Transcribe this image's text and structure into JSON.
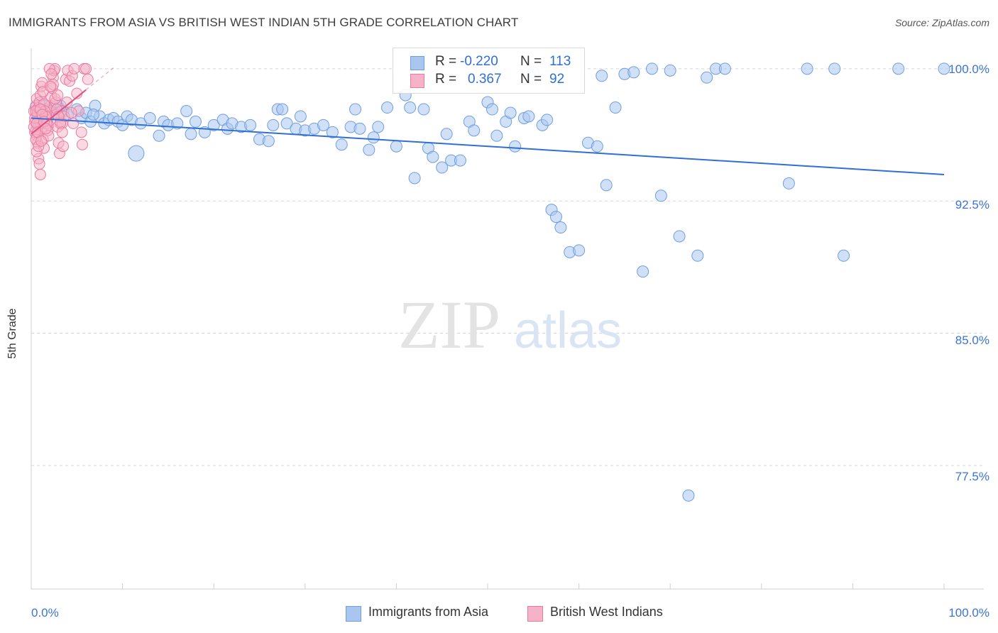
{
  "header": {
    "title": "IMMIGRANTS FROM ASIA VS BRITISH WEST INDIAN 5TH GRADE CORRELATION CHART",
    "source": "Source: ZipAtlas.com"
  },
  "watermark": {
    "zip": "ZIP",
    "atlas": "atlas"
  },
  "legend": {
    "series1": {
      "r_label": "R =",
      "r_value": "-0.220",
      "n_label": "N =",
      "n_value": "113"
    },
    "series2": {
      "r_label": "R =",
      "r_value": "0.367",
      "n_label": "N =",
      "n_value": "92"
    }
  },
  "colors": {
    "blue_fill": "#a9c6f0",
    "blue_stroke": "#6f9ee0",
    "blue_line": "#2f6fd6",
    "pink_fill": "#f6b3c8",
    "pink_stroke": "#ea7aa0",
    "pink_line": "#e0507e",
    "grid": "#d5d5d5",
    "tick_text": "#3b73d1"
  },
  "chart_data": {
    "type": "scatter",
    "title": "IMMIGRANTS FROM ASIA VS BRITISH WEST INDIAN 5TH GRADE CORRELATION CHART",
    "xlabel": "",
    "ylabel": "5th Grade",
    "xlim": [
      0,
      100
    ],
    "ylim": [
      70.5,
      101.0
    ],
    "x_tick_labels": [
      "0.0%",
      "100.0%"
    ],
    "y_ticks": [
      100.0,
      92.5,
      85.0,
      77.5
    ],
    "y_tick_labels": [
      "100.0%",
      "92.5%",
      "85.0%",
      "77.5%"
    ],
    "grid": true,
    "legend_position": "top-center",
    "series": [
      {
        "name": "Immigrants from Asia",
        "color": "#6f9ee0",
        "trend": {
          "x": [
            0,
            100
          ],
          "y": [
            97.2,
            94.0
          ]
        },
        "points": [
          [
            0.5,
            97.8
          ],
          [
            1,
            97.6
          ],
          [
            1.5,
            97.9
          ],
          [
            2,
            97.5
          ],
          [
            2.5,
            97.7
          ],
          [
            3,
            97.8
          ],
          [
            3.5,
            97.6
          ],
          [
            4,
            97.4
          ],
          [
            5,
            97.7
          ],
          [
            5.5,
            97.2
          ],
          [
            6,
            97.5
          ],
          [
            6.5,
            97.0
          ],
          [
            7,
            97.9
          ],
          [
            7.5,
            97.3
          ],
          [
            8,
            96.9
          ],
          [
            8.5,
            97.1
          ],
          [
            9,
            97.2
          ],
          [
            9.5,
            97.0
          ],
          [
            10,
            96.8
          ],
          [
            10.5,
            97.3
          ],
          [
            11,
            97.1
          ],
          [
            11.5,
            95.2
          ],
          [
            12,
            96.9
          ],
          [
            13,
            97.2
          ],
          [
            14,
            96.2
          ],
          [
            14.5,
            97.0
          ],
          [
            15,
            96.8
          ],
          [
            16,
            96.9
          ],
          [
            17,
            97.6
          ],
          [
            17.5,
            96.3
          ],
          [
            18,
            97.0
          ],
          [
            19,
            96.4
          ],
          [
            20,
            96.8
          ],
          [
            21,
            97.1
          ],
          [
            21.5,
            96.6
          ],
          [
            22,
            96.9
          ],
          [
            23,
            96.7
          ],
          [
            24,
            96.8
          ],
          [
            25,
            96.0
          ],
          [
            26,
            95.9
          ],
          [
            26.5,
            96.8
          ],
          [
            27,
            97.7
          ],
          [
            27.5,
            97.7
          ],
          [
            28,
            96.9
          ],
          [
            29,
            96.6
          ],
          [
            29.5,
            97.3
          ],
          [
            30,
            96.5
          ],
          [
            31,
            96.6
          ],
          [
            32,
            96.8
          ],
          [
            33,
            96.4
          ],
          [
            34,
            95.7
          ],
          [
            35,
            96.7
          ],
          [
            35.5,
            97.7
          ],
          [
            36,
            96.6
          ],
          [
            37,
            95.4
          ],
          [
            37.5,
            96.1
          ],
          [
            38,
            96.7
          ],
          [
            39,
            97.8
          ],
          [
            40,
            95.6
          ],
          [
            41,
            98.5
          ],
          [
            41.5,
            97.8
          ],
          [
            42,
            93.8
          ],
          [
            43,
            97.7
          ],
          [
            43.5,
            95.5
          ],
          [
            44,
            95.0
          ],
          [
            45,
            94.4
          ],
          [
            45.5,
            96.3
          ],
          [
            46,
            94.8
          ],
          [
            47,
            94.8
          ],
          [
            48,
            97.0
          ],
          [
            48.5,
            96.5
          ],
          [
            50,
            98.1
          ],
          [
            50.5,
            97.7
          ],
          [
            51,
            96.2
          ],
          [
            52,
            97.0
          ],
          [
            52.5,
            97.5
          ],
          [
            53,
            95.6
          ],
          [
            54,
            97.2
          ],
          [
            54.5,
            97.3
          ],
          [
            55,
            99.8
          ],
          [
            56,
            96.8
          ],
          [
            56.5,
            97.1
          ],
          [
            57,
            92.0
          ],
          [
            57.5,
            91.6
          ],
          [
            58,
            91.0
          ],
          [
            59,
            89.6
          ],
          [
            60,
            89.7
          ],
          [
            61,
            95.8
          ],
          [
            62,
            95.6
          ],
          [
            62.5,
            99.6
          ],
          [
            63,
            93.4
          ],
          [
            64,
            97.8
          ],
          [
            65,
            99.7
          ],
          [
            66,
            99.8
          ],
          [
            67,
            88.5
          ],
          [
            68,
            100.0
          ],
          [
            69,
            92.8
          ],
          [
            70,
            99.9
          ],
          [
            71,
            90.5
          ],
          [
            72,
            75.8
          ],
          [
            73,
            89.4
          ],
          [
            74,
            99.5
          ],
          [
            75,
            100.0
          ],
          [
            76,
            100.0
          ],
          [
            83,
            93.5
          ],
          [
            85,
            100.0
          ],
          [
            88,
            100.0
          ],
          [
            89,
            89.4
          ],
          [
            95,
            100.0
          ],
          [
            100,
            100.0
          ],
          [
            1.2,
            97.5
          ],
          [
            3.2,
            97.9
          ],
          [
            6.8,
            97.4
          ]
        ],
        "sizes": {
          "large": [
            [
              11.5,
              95.2
            ],
            [
              1,
              97.6
            ],
            [
              2,
              97.5
            ]
          ]
        }
      },
      {
        "name": "British West Indians",
        "color": "#ea7aa0",
        "trend": {
          "x": [
            0,
            6
          ],
          "y": [
            96.3,
            98.8
          ]
        },
        "points": [
          [
            0.3,
            97.6
          ],
          [
            0.4,
            97.0
          ],
          [
            0.5,
            96.5
          ],
          [
            0.6,
            96.2
          ],
          [
            0.7,
            95.8
          ],
          [
            0.8,
            94.9
          ],
          [
            0.9,
            94.6
          ],
          [
            1.0,
            94.0
          ],
          [
            0.5,
            97.9
          ],
          [
            0.6,
            98.3
          ],
          [
            0.7,
            97.3
          ],
          [
            0.8,
            96.8
          ],
          [
            0.9,
            97.1
          ],
          [
            1.0,
            96.9
          ],
          [
            1.1,
            97.4
          ],
          [
            1.2,
            96.6
          ],
          [
            1.3,
            96.0
          ],
          [
            1.4,
            95.5
          ],
          [
            1.5,
            97.2
          ],
          [
            1.6,
            96.9
          ],
          [
            1.7,
            97.7
          ],
          [
            1.8,
            97.1
          ],
          [
            1.9,
            96.8
          ],
          [
            2.0,
            97.5
          ],
          [
            2.1,
            97.9
          ],
          [
            2.2,
            98.4
          ],
          [
            2.3,
            98.9
          ],
          [
            2.4,
            99.5
          ],
          [
            2.5,
            99.9
          ],
          [
            2.6,
            100.0
          ],
          [
            2.7,
            98.1
          ],
          [
            2.8,
            97.4
          ],
          [
            2.9,
            96.7
          ],
          [
            3.0,
            95.8
          ],
          [
            3.1,
            95.2
          ],
          [
            3.2,
            97.0
          ],
          [
            3.3,
            97.6
          ],
          [
            3.4,
            96.9
          ],
          [
            3.5,
            95.6
          ],
          [
            3.6,
            97.3
          ],
          [
            3.8,
            99.4
          ],
          [
            4.0,
            99.9
          ],
          [
            4.2,
            99.3
          ],
          [
            4.5,
            99.6
          ],
          [
            4.7,
            100.0
          ],
          [
            5.0,
            98.6
          ],
          [
            5.2,
            97.6
          ],
          [
            5.5,
            96.4
          ],
          [
            5.6,
            95.7
          ],
          [
            5.8,
            100.0
          ],
          [
            6.0,
            100.0
          ],
          [
            6.2,
            99.4
          ],
          [
            0.4,
            96.4
          ],
          [
            0.5,
            96.0
          ],
          [
            0.6,
            95.3
          ],
          [
            0.7,
            97.5
          ],
          [
            0.8,
            97.8
          ],
          [
            0.9,
            98.1
          ],
          [
            1.0,
            98.5
          ],
          [
            1.1,
            99.0
          ],
          [
            1.2,
            99.2
          ],
          [
            1.3,
            98.7
          ],
          [
            1.4,
            98.0
          ],
          [
            1.5,
            97.6
          ],
          [
            1.6,
            97.3
          ],
          [
            1.7,
            96.9
          ],
          [
            1.8,
            96.5
          ],
          [
            1.9,
            96.2
          ],
          [
            0.3,
            96.7
          ],
          [
            0.4,
            97.2
          ],
          [
            0.5,
            97.6
          ],
          [
            0.6,
            96.9
          ],
          [
            0.7,
            96.4
          ],
          [
            2.0,
            100.0
          ],
          [
            2.2,
            99.7
          ],
          [
            2.4,
            99.1
          ],
          [
            2.6,
            98.3
          ],
          [
            2.8,
            97.7
          ],
          [
            3.0,
            97.3
          ],
          [
            3.2,
            96.9
          ],
          [
            3.4,
            96.4
          ],
          [
            1.0,
            97.7
          ],
          [
            1.2,
            97.4
          ],
          [
            1.4,
            97.0
          ],
          [
            1.6,
            96.6
          ],
          [
            4.4,
            97.5
          ],
          [
            4.6,
            96.9
          ],
          [
            3.9,
            98.1
          ],
          [
            0.8,
            95.6
          ],
          [
            1.1,
            95.9
          ],
          [
            2.1,
            99.0
          ],
          [
            2.9,
            98.5
          ]
        ]
      }
    ]
  },
  "axis": {
    "x_left": "0.0%",
    "x_right": "100.0%",
    "y_labels": [
      "100.0%",
      "92.5%",
      "85.0%",
      "77.5%"
    ],
    "ylabel": "5th Grade"
  },
  "bottom_legend": {
    "series1": "Immigrants from Asia",
    "series2": "British West Indians"
  }
}
